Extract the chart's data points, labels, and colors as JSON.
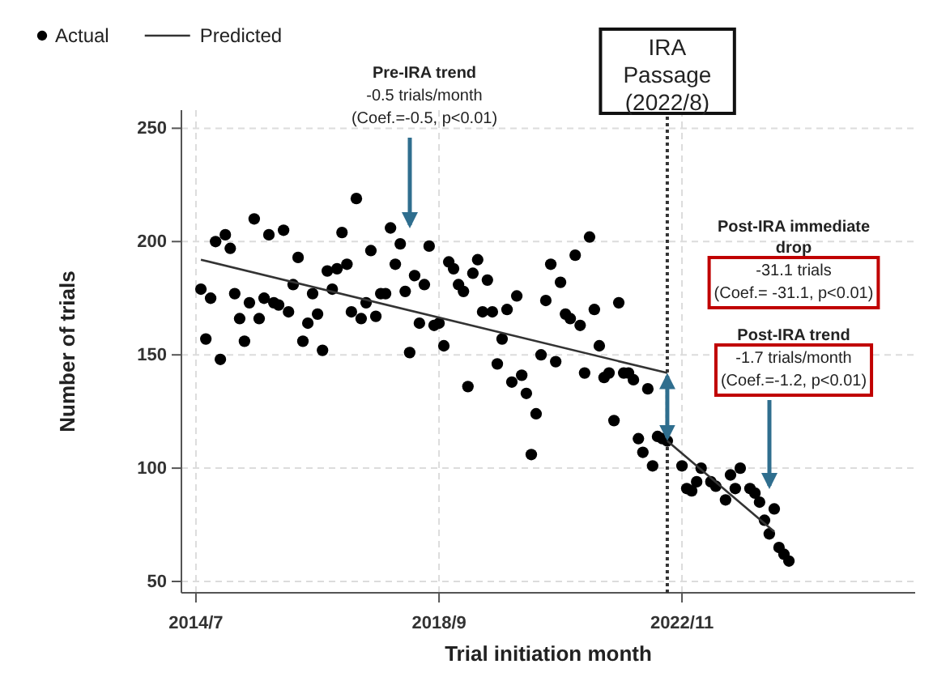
{
  "chart_data": {
    "type": "scatter",
    "xlabel": "Trial initiation month",
    "ylabel": "Number of trials",
    "xlim": [
      "2014-04",
      "2026-11"
    ],
    "ylim": [
      45,
      258
    ],
    "xticks": [
      {
        "value": "2014-07",
        "label": "2014/7"
      },
      {
        "value": "2018-09",
        "label": "2018/9"
      },
      {
        "value": "2022-11",
        "label": "2022/11"
      }
    ],
    "yticks": [
      50,
      100,
      150,
      200,
      250
    ],
    "grid": true,
    "legend": "top left",
    "series": [
      {
        "name": "Actual",
        "marker": "circle",
        "color": "#000000",
        "x": [
          "2014-08",
          "2014-09",
          "2014-10",
          "2014-11",
          "2014-12",
          "2015-01",
          "2015-02",
          "2015-03",
          "2015-04",
          "2015-05",
          "2015-06",
          "2015-07",
          "2015-08",
          "2015-09",
          "2015-10",
          "2015-11",
          "2015-12",
          "2016-01",
          "2016-02",
          "2016-03",
          "2016-04",
          "2016-05",
          "2016-06",
          "2016-07",
          "2016-08",
          "2016-09",
          "2016-10",
          "2016-11",
          "2016-12",
          "2017-01",
          "2017-02",
          "2017-03",
          "2017-04",
          "2017-05",
          "2017-06",
          "2017-07",
          "2017-08",
          "2017-09",
          "2017-10",
          "2017-11",
          "2017-12",
          "2018-01",
          "2018-02",
          "2018-03",
          "2018-04",
          "2018-05",
          "2018-06",
          "2018-07",
          "2018-08",
          "2018-09",
          "2018-10",
          "2018-11",
          "2018-12",
          "2019-01",
          "2019-02",
          "2019-03",
          "2019-04",
          "2019-05",
          "2019-06",
          "2019-07",
          "2019-08",
          "2019-09",
          "2019-10",
          "2019-11",
          "2019-12",
          "2020-01",
          "2020-02",
          "2020-03",
          "2020-04",
          "2020-05",
          "2020-06",
          "2020-07",
          "2020-08",
          "2020-09",
          "2020-10",
          "2020-11",
          "2020-12",
          "2021-01",
          "2021-02",
          "2021-03",
          "2021-04",
          "2021-05",
          "2021-06",
          "2021-07",
          "2021-08",
          "2021-09",
          "2021-10",
          "2021-11",
          "2021-12",
          "2022-01",
          "2022-02",
          "2022-03",
          "2022-04",
          "2022-05",
          "2022-06",
          "2022-07",
          "2022-08",
          "2022-11",
          "2022-12",
          "2023-01",
          "2023-02",
          "2023-03",
          "2023-05",
          "2023-06",
          "2023-08",
          "2023-09",
          "2023-10",
          "2023-11",
          "2024-01",
          "2024-02",
          "2024-03",
          "2024-04",
          "2024-05",
          "2024-06",
          "2024-07",
          "2024-08",
          "2024-09"
        ],
        "values": [
          179,
          157,
          175,
          200,
          148,
          203,
          197,
          177,
          166,
          156,
          173,
          210,
          166,
          175,
          203,
          173,
          172,
          205,
          169,
          181,
          193,
          156,
          164,
          177,
          168,
          152,
          187,
          179,
          188,
          204,
          190,
          169,
          219,
          166,
          173,
          196,
          167,
          177,
          177,
          206,
          190,
          199,
          178,
          151,
          185,
          164,
          181,
          198,
          163,
          164,
          154,
          191,
          188,
          181,
          178,
          136,
          186,
          192,
          169,
          183,
          169,
          146,
          157,
          170,
          138,
          176,
          141,
          133,
          106,
          124,
          150,
          174,
          190,
          147,
          182,
          168,
          166,
          194,
          163,
          142,
          202,
          170,
          154,
          140,
          142,
          121,
          173,
          142,
          142,
          139,
          113,
          107,
          135,
          101,
          114,
          113,
          112,
          101,
          91,
          90,
          94,
          100,
          94,
          92,
          86,
          97,
          91,
          100,
          91,
          89,
          85,
          77,
          71,
          82,
          65,
          62,
          59
        ]
      },
      {
        "name": "Predicted",
        "type": "line",
        "marker": "none",
        "color": "#333333",
        "line_style": "solid",
        "x": [
          "2014-08",
          "2022-08"
        ],
        "values": [
          192,
          142
        ]
      },
      {
        "type": "line",
        "marker": "none",
        "color": "#333333",
        "line_style": "solid",
        "x": [
          "2022-08",
          "2024-06"
        ],
        "values": [
          112,
          72
        ]
      }
    ],
    "ref_lines": [
      {
        "axis": "x",
        "value": "2022-08",
        "label": "IRA Passage (2022/8)",
        "line_style": "dotted",
        "color": "#333333"
      }
    ],
    "annotations": [
      "Pre-IRA trend\n-0.5 trials/month\n(Coef.=-0.5, p<0.01)",
      "Post-IRA immediate drop\n-31.1 trials\n(Coef.= -31.1, p<0.01)",
      "Post-IRA trend\n-1.7 trials/month\n(Coef.=-1.2, p<0.01)"
    ]
  }
}
